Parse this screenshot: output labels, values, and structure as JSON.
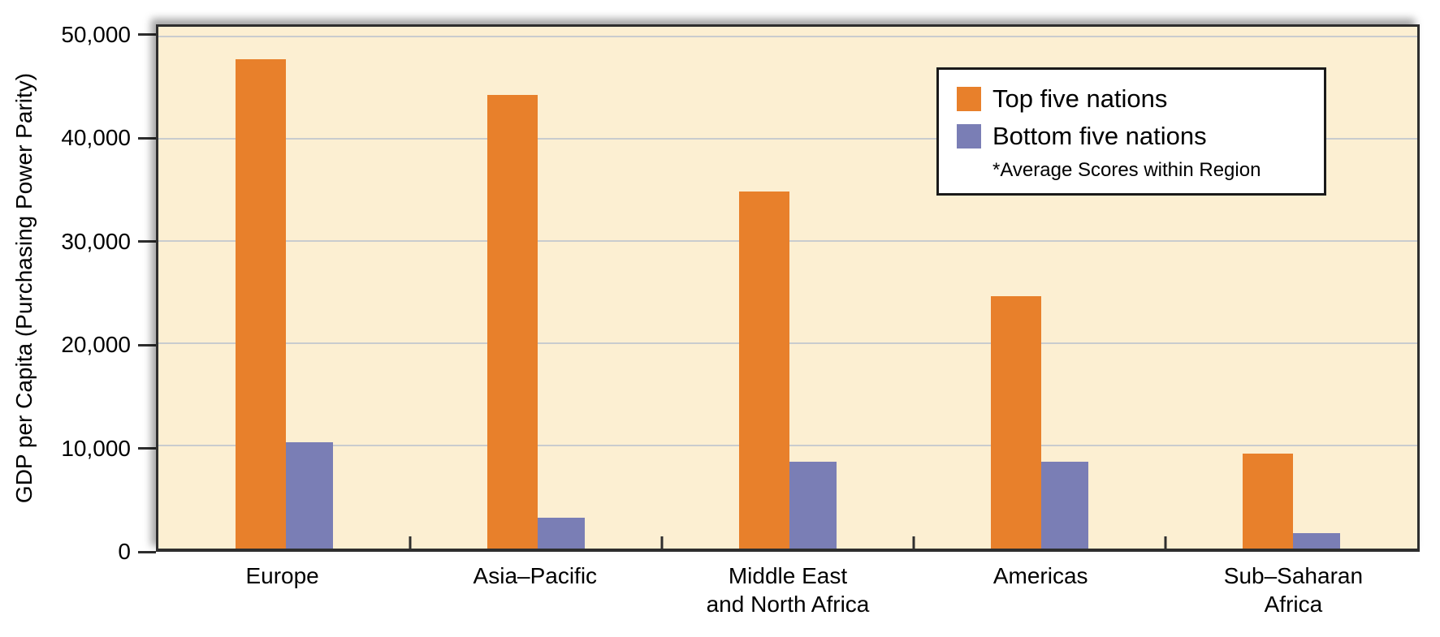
{
  "chart_data": {
    "type": "bar",
    "title": "",
    "xlabel": "",
    "ylabel": "GDP per Capita (Purchasing Power Parity)",
    "ylim": [
      0,
      50000
    ],
    "grid": "horizontal",
    "legend_position": "top-right",
    "legend_note": "*Average Scores within Region",
    "background_color": "#FCEFD2",
    "gridline_color": "#C9CCCE",
    "axis_color": "#2e2e2e",
    "categories": [
      "Europe",
      "Asia–Pacific",
      "Middle East\nand North Africa",
      "Americas",
      "Sub–Saharan\nAfrica"
    ],
    "yticks": [
      {
        "value": 0,
        "label": "0"
      },
      {
        "value": 10000,
        "label": "10,000"
      },
      {
        "value": 20000,
        "label": "20,000"
      },
      {
        "value": 30000,
        "label": "30,000"
      },
      {
        "value": 40000,
        "label": "40,000"
      },
      {
        "value": 50000,
        "label": "50,000"
      }
    ],
    "series": [
      {
        "name": "Top five nations",
        "color": "#E8802B",
        "values": [
          47800,
          44300,
          34900,
          24700,
          9300
        ]
      },
      {
        "name": "Bottom five nations",
        "color": "#7A7EB5",
        "values": [
          10400,
          3000,
          8500,
          8500,
          1500
        ]
      }
    ]
  }
}
